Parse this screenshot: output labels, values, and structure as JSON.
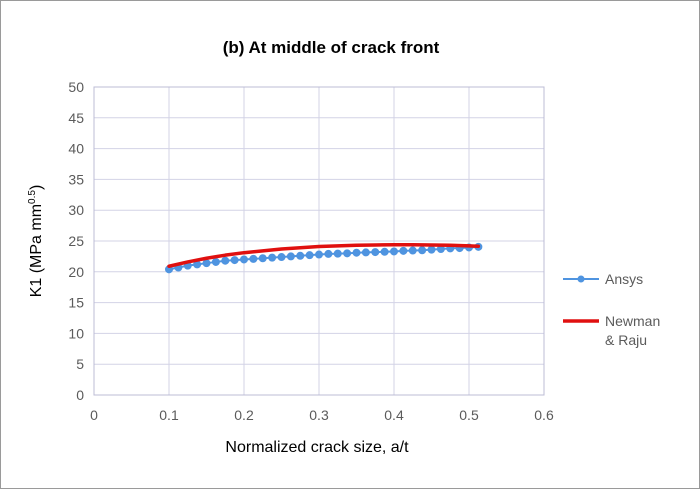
{
  "chart_data": {
    "type": "line",
    "title": "(b) At middle of crack front",
    "xlabel": "Normalized crack size, a/t",
    "ylabel": "K1 (MPa mm",
    "ylabel_superscript": "0.5",
    "ylabel_close": ")",
    "xlim": [
      0,
      0.6
    ],
    "ylim": [
      0,
      50
    ],
    "x_ticks": [
      0,
      0.1,
      0.2,
      0.3,
      0.4,
      0.5,
      0.6
    ],
    "x_tick_labels": [
      "0",
      "0.1",
      "0.2",
      "0.3",
      "0.4",
      "0.5",
      "0.6"
    ],
    "y_ticks": [
      0,
      5,
      10,
      15,
      20,
      25,
      30,
      35,
      40,
      45,
      50
    ],
    "y_tick_labels": [
      "0",
      "5",
      "10",
      "15",
      "20",
      "25",
      "30",
      "35",
      "40",
      "45",
      "50"
    ],
    "grid": true,
    "legend_position": "right",
    "series": [
      {
        "name": "Ansys",
        "color": "#4f94e0",
        "marker": "circle",
        "x": [
          0.1,
          0.1125,
          0.125,
          0.1375,
          0.15,
          0.1625,
          0.175,
          0.1875,
          0.2,
          0.2125,
          0.225,
          0.2375,
          0.25,
          0.2625,
          0.275,
          0.2875,
          0.3,
          0.3125,
          0.325,
          0.3375,
          0.35,
          0.3625,
          0.375,
          0.3875,
          0.4,
          0.4125,
          0.425,
          0.4375,
          0.45,
          0.4625,
          0.475,
          0.4875,
          0.5,
          0.5125
        ],
        "y": [
          20.4,
          20.7,
          21.0,
          21.2,
          21.4,
          21.6,
          21.8,
          21.9,
          22.0,
          22.1,
          22.2,
          22.3,
          22.4,
          22.5,
          22.6,
          22.7,
          22.8,
          22.9,
          22.95,
          23.0,
          23.1,
          23.15,
          23.2,
          23.25,
          23.3,
          23.4,
          23.45,
          23.5,
          23.6,
          23.7,
          23.8,
          23.85,
          23.95,
          24.05
        ]
      },
      {
        "name": "Newman & Raju",
        "legend_lines": [
          "Newman",
          "& Raju"
        ],
        "color": "#e01010",
        "marker": "none",
        "x": [
          0.1,
          0.125,
          0.15,
          0.175,
          0.2,
          0.225,
          0.25,
          0.275,
          0.3,
          0.325,
          0.35,
          0.375,
          0.4,
          0.425,
          0.45,
          0.475,
          0.5,
          0.5125
        ],
        "y": [
          20.9,
          21.6,
          22.2,
          22.7,
          23.1,
          23.4,
          23.7,
          23.9,
          24.1,
          24.2,
          24.3,
          24.35,
          24.4,
          24.4,
          24.35,
          24.3,
          24.2,
          24.15
        ]
      }
    ]
  }
}
